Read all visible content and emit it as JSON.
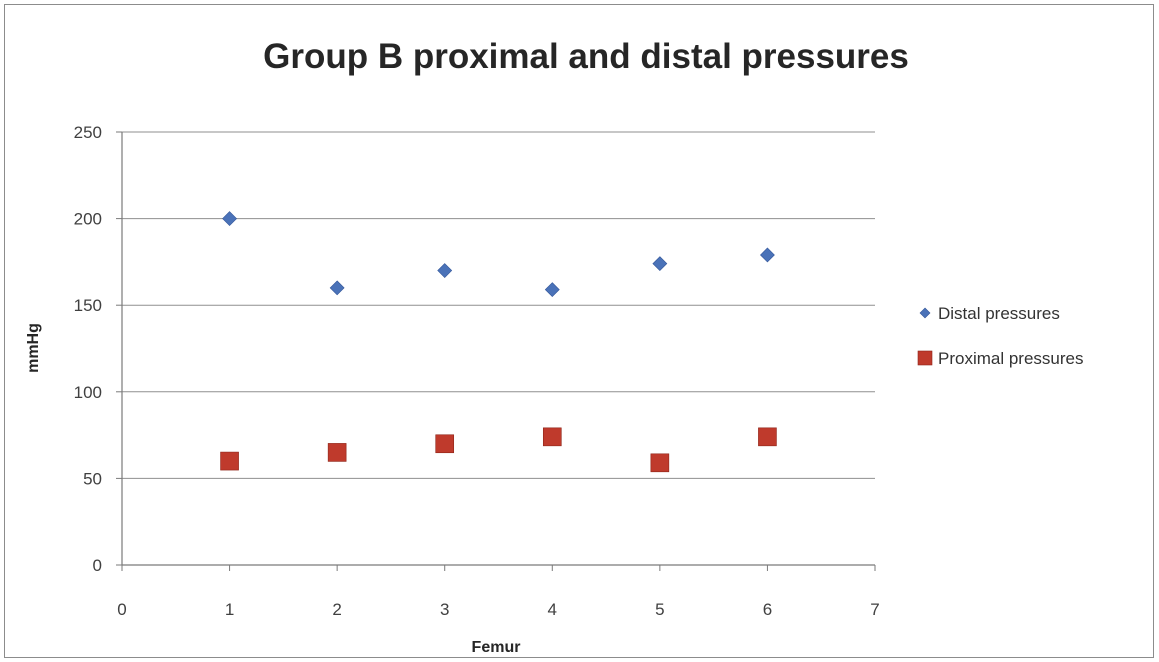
{
  "chart_data": {
    "type": "scatter",
    "title": "Group B proximal and distal pressures",
    "xlabel": "Femur",
    "ylabel": "mmHg",
    "xlim": [
      0,
      7
    ],
    "ylim": [
      0,
      250
    ],
    "xticks": [
      0,
      1,
      2,
      3,
      4,
      5,
      6,
      7
    ],
    "yticks": [
      0,
      50,
      100,
      150,
      200,
      250
    ],
    "grid": "horizontal major gridlines",
    "legend_position": "right",
    "series": [
      {
        "name": "Distal pressures",
        "marker": "diamond",
        "color": "#4a72b8",
        "x": [
          1,
          2,
          3,
          4,
          5,
          6
        ],
        "y": [
          200,
          160,
          170,
          159,
          174,
          179
        ]
      },
      {
        "name": "Proximal pressures",
        "marker": "square",
        "color": "#bf3a2c",
        "x": [
          1,
          2,
          3,
          4,
          5,
          6
        ],
        "y": [
          60,
          65,
          70,
          74,
          59,
          74
        ]
      }
    ]
  }
}
